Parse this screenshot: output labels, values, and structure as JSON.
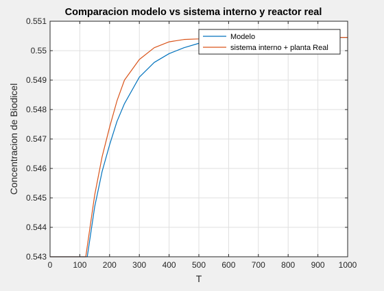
{
  "chart_data": {
    "type": "line",
    "title": "Comparacion modelo vs sistema interno y reactor real",
    "xlabel": "T",
    "ylabel": "Concentracion de Biodicel",
    "xlim": [
      0,
      1000
    ],
    "ylim": [
      0.543,
      0.551
    ],
    "grid": true,
    "legend_position": "top-right",
    "x_ticks": [
      0,
      100,
      200,
      300,
      400,
      500,
      600,
      700,
      800,
      900,
      1000
    ],
    "x_tick_labels": [
      "0",
      "100",
      "200",
      "300",
      "400",
      "500",
      "600",
      "700",
      "800",
      "900",
      "1000"
    ],
    "y_ticks": [
      0.543,
      0.544,
      0.545,
      0.546,
      0.547,
      0.548,
      0.549,
      0.55,
      0.551
    ],
    "y_tick_labels": [
      "0.543",
      "0.544",
      "0.545",
      "0.546",
      "0.547",
      "0.548",
      "0.549",
      "0.55",
      "0.551"
    ],
    "series": [
      {
        "name": "Modelo",
        "color": "#0072BD",
        "x": [
          0,
          125,
          150,
          175,
          200,
          225,
          250,
          300,
          350,
          400,
          450,
          500,
          600,
          700,
          800,
          900,
          1000
        ],
        "y": [
          0.543,
          0.543,
          0.5447,
          0.5459,
          0.5468,
          0.5476,
          0.5482,
          0.5491,
          0.5496,
          0.5499,
          0.5501,
          0.55025,
          0.5504,
          0.55045,
          0.55045,
          0.55045,
          0.55045
        ]
      },
      {
        "name": "sistema interno + planta Real",
        "color": "#D95319",
        "x": [
          0,
          120,
          150,
          175,
          200,
          225,
          250,
          300,
          350,
          400,
          450,
          500,
          550,
          600,
          700,
          800,
          900,
          1000
        ],
        "y": [
          0.543,
          0.543,
          0.5451,
          0.5464,
          0.5474,
          0.5483,
          0.549,
          0.5497,
          0.5501,
          0.5503,
          0.55038,
          0.5504,
          0.55045,
          0.55045,
          0.55045,
          0.55045,
          0.55045,
          0.55045
        ]
      }
    ]
  }
}
